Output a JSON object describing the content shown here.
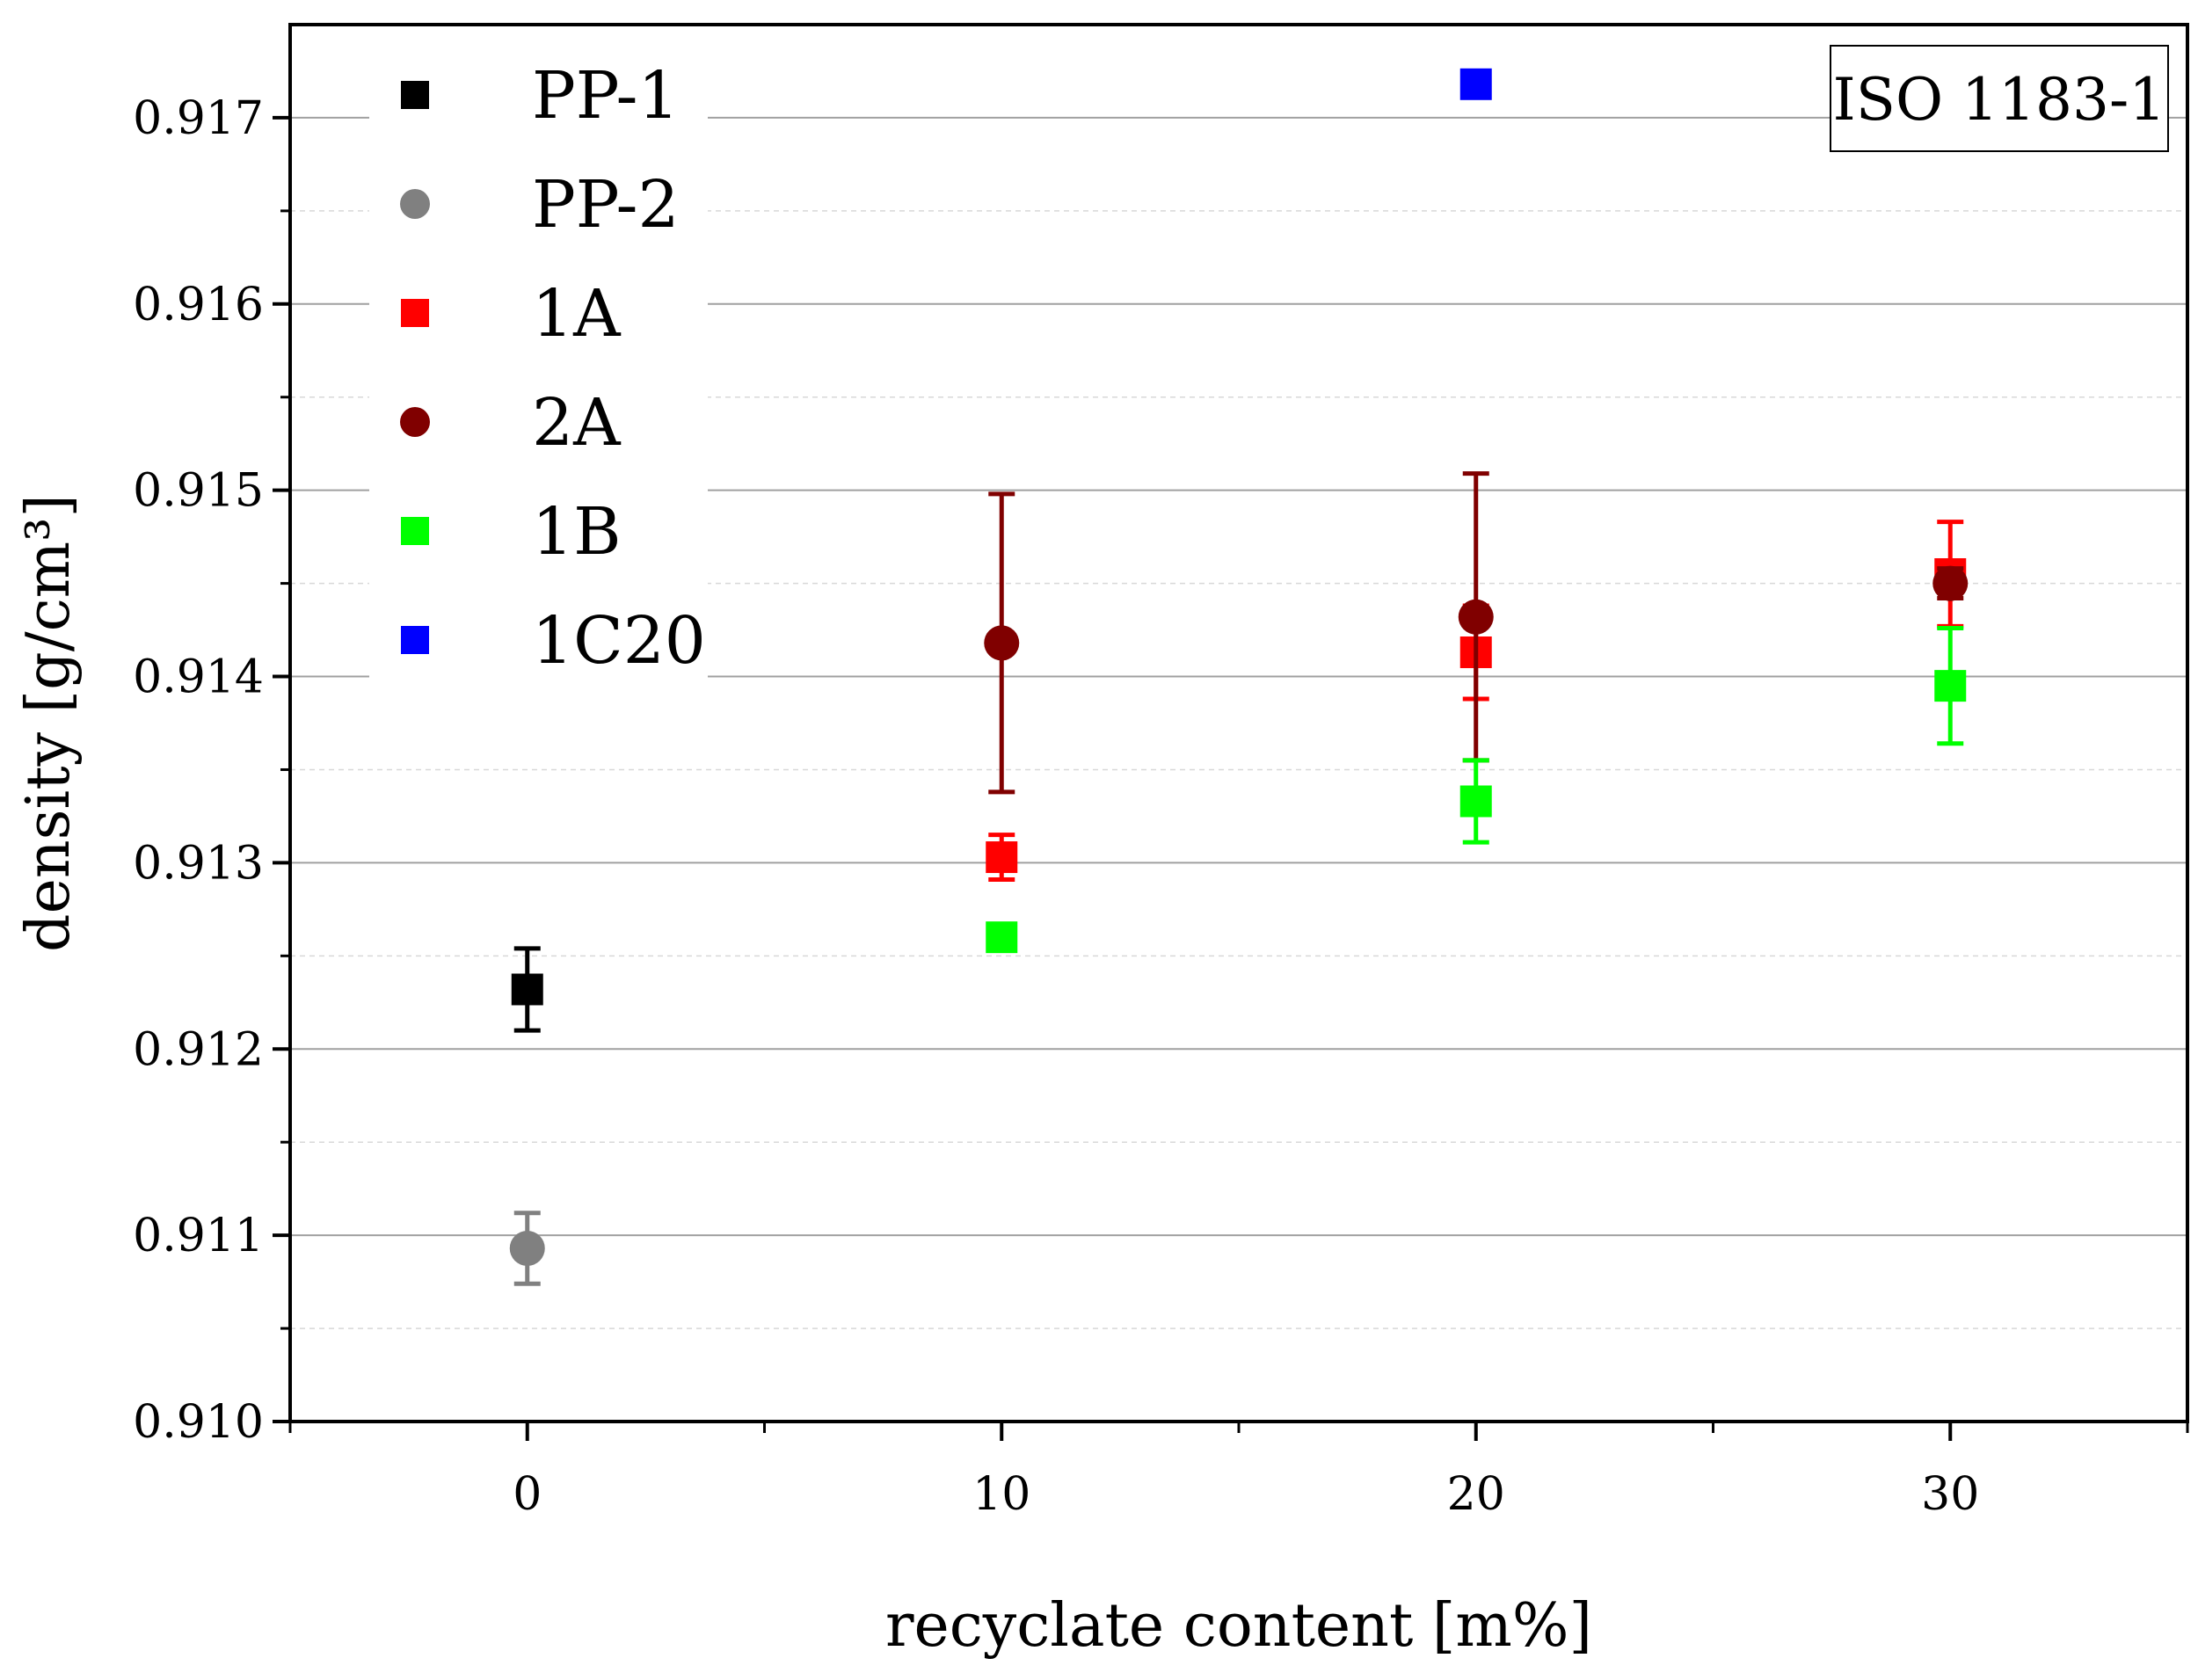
{
  "chart_data": {
    "type": "scatter",
    "title": "",
    "xlabel": "recyclate content [m%]",
    "ylabel": "density [g/cm³]",
    "xlim": [
      -5,
      35
    ],
    "ylim": [
      0.91,
      0.9175
    ],
    "x_ticks": [
      0,
      10,
      20,
      30
    ],
    "x_tick_labels": [
      "0",
      "10",
      "20",
      "30"
    ],
    "y_ticks": [
      0.91,
      0.911,
      0.912,
      0.913,
      0.914,
      0.915,
      0.916,
      0.917
    ],
    "y_tick_labels": [
      "0.910",
      "0.911",
      "0.912",
      "0.913",
      "0.914",
      "0.915",
      "0.916",
      "0.917"
    ],
    "grid": true,
    "legend_position": "top-left",
    "annotation": "ISO 1183-1",
    "series": [
      {
        "name": "PP-1",
        "marker": "square",
        "color": "#000000",
        "points": [
          {
            "x": 0,
            "y": 0.91232,
            "err": 0.00022
          }
        ]
      },
      {
        "name": "PP-2",
        "marker": "circle",
        "color": "#808080",
        "points": [
          {
            "x": 0,
            "y": 0.91093,
            "err": 0.00019
          }
        ]
      },
      {
        "name": "1A",
        "marker": "square",
        "color": "#ff0000",
        "points": [
          {
            "x": 10,
            "y": 0.91303,
            "err": 0.00012
          },
          {
            "x": 20,
            "y": 0.91413,
            "err": 0.00025
          },
          {
            "x": 30,
            "y": 0.91455,
            "err": 0.00028
          }
        ]
      },
      {
        "name": "2A",
        "marker": "circle",
        "color": "#800000",
        "points": [
          {
            "x": 10,
            "y": 0.91418,
            "err": 0.0008
          },
          {
            "x": 20,
            "y": 0.91432,
            "err": 0.00077
          },
          {
            "x": 30,
            "y": 0.9145,
            "err": 8e-05
          }
        ]
      },
      {
        "name": "1B",
        "marker": "square",
        "color": "#00ff00",
        "points": [
          {
            "x": 10,
            "y": 0.9126,
            "err": 6e-05
          },
          {
            "x": 20,
            "y": 0.91333,
            "err": 0.00022
          },
          {
            "x": 30,
            "y": 0.91395,
            "err": 0.00031
          }
        ]
      },
      {
        "name": "1C20",
        "marker": "square",
        "color": "#0000ff",
        "points": [
          {
            "x": 20,
            "y": 0.91718,
            "err": 0
          }
        ]
      }
    ]
  }
}
